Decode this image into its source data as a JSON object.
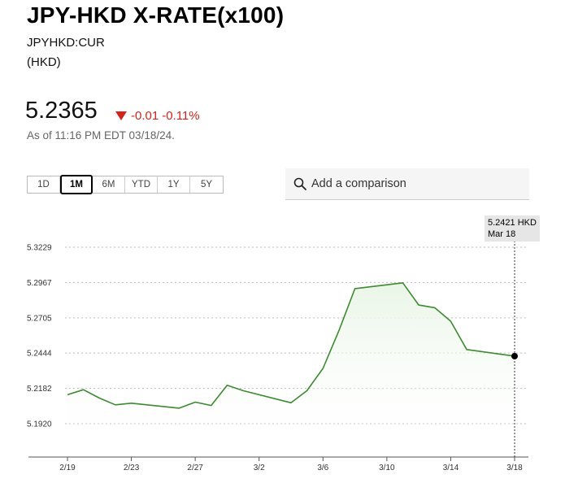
{
  "header": {
    "title": "JPY-HKD X-RATE(x100)",
    "ticker": "JPYHKD:CUR",
    "currency": "(HKD)"
  },
  "quote": {
    "price": "5.2365",
    "change": "-0.01",
    "change_pct": "-0.11%",
    "as_of": "As of 11:16 PM EDT 03/18/24."
  },
  "range_tabs": [
    {
      "label": "1D",
      "active": false
    },
    {
      "label": "1M",
      "active": true
    },
    {
      "label": "6M",
      "active": false
    },
    {
      "label": "YTD",
      "active": false
    },
    {
      "label": "1Y",
      "active": false
    },
    {
      "label": "5Y",
      "active": false
    }
  ],
  "comparison": {
    "placeholder": "Add a comparison",
    "icon": "search-icon"
  },
  "tooltip": {
    "value": "5.2421 HKD",
    "date": "Mar 18"
  },
  "colors": {
    "line": "#3c8b30",
    "fill": "#e9f5e6",
    "down": "#d1241b"
  },
  "chart_data": {
    "type": "area",
    "x": [
      "2/19",
      "2/20",
      "2/21",
      "2/22",
      "2/23",
      "2/26",
      "2/27",
      "2/28",
      "2/29",
      "3/1",
      "3/4",
      "3/5",
      "3/6",
      "3/7",
      "3/8",
      "3/11",
      "3/12",
      "3/13",
      "3/14",
      "3/15",
      "3/18"
    ],
    "x_day": [
      0,
      1,
      2,
      3,
      4,
      7,
      8,
      9,
      10,
      11,
      14,
      15,
      16,
      17,
      18,
      21,
      22,
      23,
      24,
      25,
      28
    ],
    "series": [
      {
        "values": [
          5.2135,
          5.2172,
          5.211,
          5.206,
          5.2072,
          5.2035,
          5.208,
          5.2055,
          5.2205,
          5.2165,
          5.2075,
          5.2165,
          5.233,
          5.261,
          5.2922,
          5.2965,
          5.28,
          5.278,
          5.268,
          5.247,
          5.2421
        ]
      }
    ],
    "x_ticks": [
      "2/19",
      "2/23",
      "2/27",
      "3/2",
      "3/6",
      "3/10",
      "3/14",
      "3/18"
    ],
    "x_tick_days": [
      0,
      4,
      8,
      12,
      16,
      20,
      24,
      28
    ],
    "y_ticks": [
      "5.3229",
      "5.2967",
      "5.2705",
      "5.2444",
      "5.2182",
      "5.1920"
    ],
    "y_tick_values": [
      5.3229,
      5.2967,
      5.2705,
      5.2444,
      5.2182,
      5.192
    ],
    "grid": "horizontal dotted"
  }
}
